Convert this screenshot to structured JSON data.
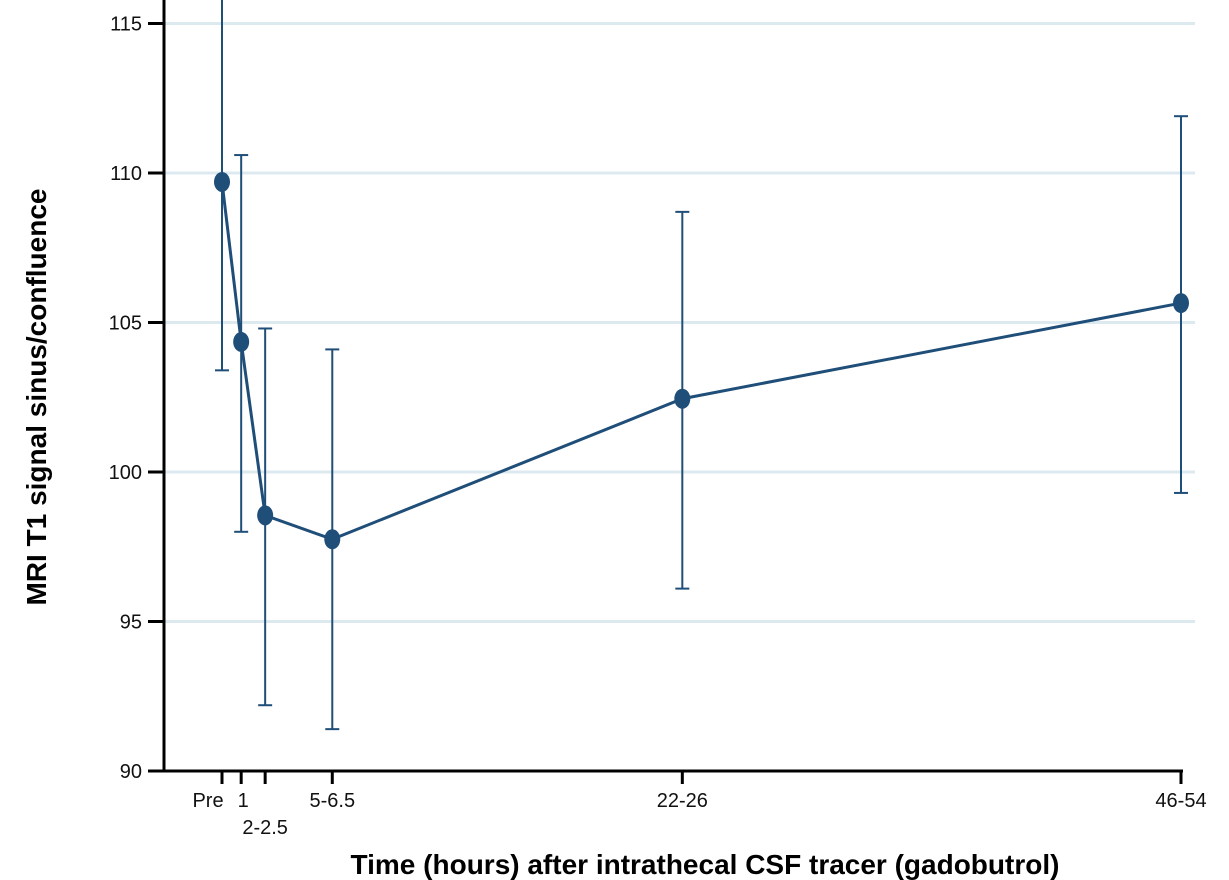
{
  "colors": {
    "series": "#1f4e79",
    "grid": "#dce9ef",
    "axis": "#000000"
  },
  "chart_data": {
    "type": "line",
    "title": "",
    "xlabel": "Time (hours) after intrathecal CSF tracer (gadobutrol)",
    "ylabel": "MRI T1 signal sinus/confluence",
    "x_scale": "linear",
    "xlim": [
      -0.5,
      54
    ],
    "ylim": [
      90,
      116
    ],
    "yticks": [
      90,
      95,
      100,
      105,
      110,
      115
    ],
    "grid": true,
    "x_ticks": [
      {
        "x": 0,
        "label": "Pre"
      },
      {
        "x": 1,
        "label": "1"
      },
      {
        "x": 2.25,
        "label": "2-2.5"
      },
      {
        "x": 5.75,
        "label": "5-6.5"
      },
      {
        "x": 24,
        "label": "22-26"
      },
      {
        "x": 50,
        "label": "46-54"
      }
    ],
    "series": [
      {
        "x": [
          0,
          1,
          2.25,
          5.75,
          24,
          50
        ],
        "y": [
          109.7,
          104.35,
          98.55,
          97.75,
          102.45,
          105.65
        ],
        "err_low": [
          103.4,
          98.0,
          92.2,
          91.4,
          96.1,
          99.3
        ],
        "err_high": [
          116,
          110.6,
          104.8,
          104.1,
          108.7,
          111.9
        ]
      }
    ]
  }
}
